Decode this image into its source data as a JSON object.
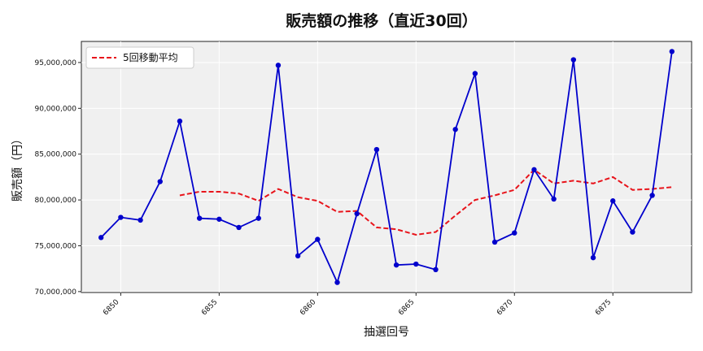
{
  "chart_data": {
    "type": "line",
    "title": "販売額の推移（直近30回）",
    "xlabel": "抽選回号",
    "ylabel": "販売額（円）",
    "x": [
      6849,
      6850,
      6851,
      6852,
      6853,
      6854,
      6855,
      6856,
      6857,
      6858,
      6859,
      6860,
      6861,
      6862,
      6863,
      6864,
      6865,
      6866,
      6867,
      6868,
      6869,
      6870,
      6871,
      6872,
      6873,
      6874,
      6875,
      6876,
      6877,
      6878
    ],
    "xticks": [
      6850,
      6855,
      6860,
      6865,
      6870,
      6875
    ],
    "xlim": [
      6848,
      6879
    ],
    "ylim": [
      69900000,
      97300000
    ],
    "yticks": [
      70000000,
      75000000,
      80000000,
      85000000,
      90000000,
      95000000
    ],
    "ytick_labels": [
      "70,000,000",
      "75,000,000",
      "80,000,000",
      "85,000,000",
      "90,000,000",
      "95,000,000"
    ],
    "grid": true,
    "legend_position": "top-left",
    "series": [
      {
        "name": "",
        "color": "#0000cc",
        "style": "solid-markers",
        "values": [
          75900000,
          78100000,
          77800000,
          82000000,
          88600000,
          78000000,
          77900000,
          77000000,
          78000000,
          94700000,
          73900000,
          75700000,
          71000000,
          78500000,
          85500000,
          72900000,
          73000000,
          72400000,
          87700000,
          93800000,
          75400000,
          76400000,
          83300000,
          80100000,
          95300000,
          73700000,
          79900000,
          76500000,
          80500000,
          96200000
        ]
      },
      {
        "name": "5回移動平均",
        "color": "#e8141b",
        "style": "dashed",
        "values": [
          null,
          null,
          null,
          null,
          80500000,
          80900000,
          80900000,
          80700000,
          79900000,
          81200000,
          80300000,
          79900000,
          78700000,
          78800000,
          77000000,
          76800000,
          76200000,
          76500000,
          78300000,
          80000000,
          80500000,
          81100000,
          83300000,
          81800000,
          82100000,
          81800000,
          82500000,
          81100000,
          81200000,
          81400000
        ]
      }
    ]
  }
}
